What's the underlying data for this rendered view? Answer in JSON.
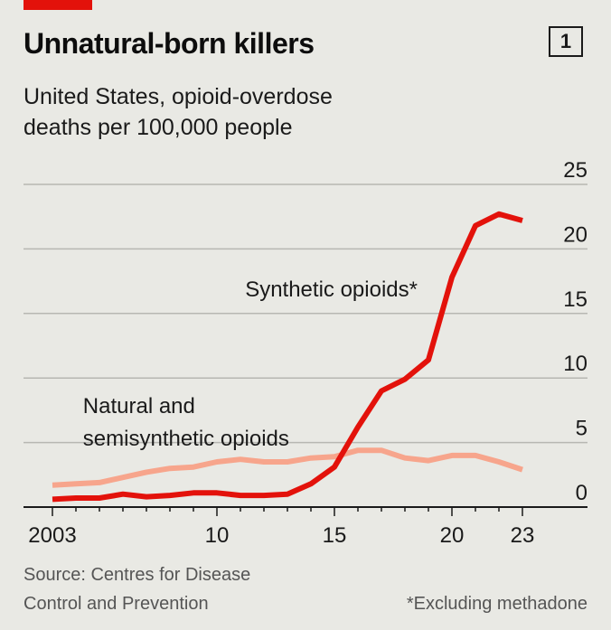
{
  "header": {
    "title": "Unnatural-born killers",
    "chart_number": "1",
    "subtitle_line1": "United States, opioid-overdose",
    "subtitle_line2": "deaths per 100,000 people"
  },
  "footer": {
    "source_line1": "Source: Centres for Disease",
    "source_line2": "Control and Prevention",
    "note": "*Excluding methadone"
  },
  "colors": {
    "background": "#e9e9e4",
    "accent": "#e3120b",
    "synthetic": "#e3120b",
    "natural": "#f7a58c",
    "gridline": "#b7b7b2",
    "axis": "#1a1a1a"
  },
  "chart_data": {
    "type": "line",
    "title": "Unnatural-born killers",
    "subtitle": "United States, opioid-overdose deaths per 100,000 people",
    "x": [
      2003,
      2004,
      2005,
      2006,
      2007,
      2008,
      2009,
      2010,
      2011,
      2012,
      2013,
      2014,
      2015,
      2016,
      2017,
      2018,
      2019,
      2020,
      2021,
      2022,
      2023
    ],
    "xlim": [
      2003,
      2023
    ],
    "ylim": [
      0,
      25
    ],
    "y_ticks": [
      0,
      5,
      10,
      15,
      20,
      25
    ],
    "x_ticks": [
      {
        "value": 2003,
        "label": "2003"
      },
      {
        "value": 2010,
        "label": "10"
      },
      {
        "value": 2015,
        "label": "15"
      },
      {
        "value": 2020,
        "label": "20"
      },
      {
        "value": 2023,
        "label": "23"
      }
    ],
    "y_axis_side": "right",
    "grid": true,
    "series": [
      {
        "name": "Synthetic opioids*",
        "label_line1": "Synthetic opioids*",
        "label_line2": "",
        "label_anchor": {
          "x": 2011.2,
          "y": 16.3
        },
        "color_key": "synthetic",
        "stroke_width": 6,
        "values": [
          0.6,
          0.7,
          0.7,
          1.0,
          0.8,
          0.9,
          1.1,
          1.1,
          0.9,
          0.9,
          1.0,
          1.8,
          3.1,
          6.2,
          9.0,
          9.9,
          11.4,
          17.8,
          21.8,
          22.7,
          22.2
        ]
      },
      {
        "name": "Natural and semisynthetic opioids",
        "label_line1": "Natural and",
        "label_line2": "semisynthetic opioids",
        "label_anchor": {
          "x": 2004.3,
          "y": 7.3
        },
        "color_key": "natural",
        "stroke_width": 6,
        "values": [
          1.7,
          1.8,
          1.9,
          2.3,
          2.7,
          3.0,
          3.1,
          3.5,
          3.7,
          3.5,
          3.5,
          3.8,
          3.9,
          4.4,
          4.4,
          3.8,
          3.6,
          4.0,
          4.0,
          3.5,
          2.9
        ]
      }
    ]
  }
}
